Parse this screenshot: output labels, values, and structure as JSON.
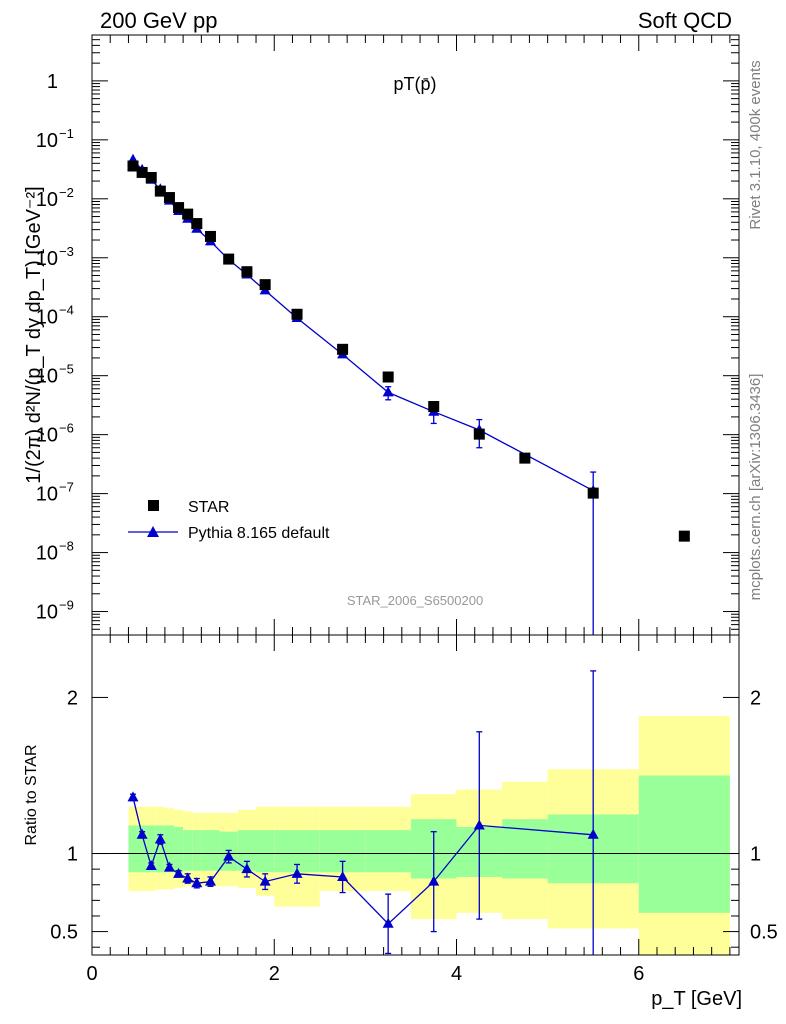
{
  "header": {
    "left": "200 GeV pp",
    "right": "Soft QCD"
  },
  "side_labels": {
    "rivet": "Rivet 3.1.10,  400k events",
    "mcplots": "mcplots.cern.ch [arXiv:1306.3436]"
  },
  "colors": {
    "data": "#000000",
    "mc": "#0000cc",
    "band_inner": "#99ff99",
    "band_outer": "#ffff99"
  },
  "chart_data": {
    "type": "scatter",
    "title": "pT(p̄)",
    "analysis_label": "STAR_2006_S6500200",
    "xlabel": "p_T [GeV]",
    "ylabel": "1/(2π) d²N/(p_T dy dp_T) [GeV⁻²]",
    "ratio_ylabel": "Ratio to STAR",
    "xlim": [
      0,
      7.1
    ],
    "ylim": [
      4e-10,
      6
    ],
    "ratio_ylim": [
      0.35,
      2.4
    ],
    "x_ticks": [
      0,
      2,
      4,
      6
    ],
    "y_ticks": [
      {
        "v": 1,
        "b": "1",
        "e": ""
      },
      {
        "v": 0.1,
        "b": "10",
        "e": "−1"
      },
      {
        "v": 0.01,
        "b": "10",
        "e": "−2"
      },
      {
        "v": 0.001,
        "b": "10",
        "e": "−3"
      },
      {
        "v": 0.0001,
        "b": "10",
        "e": "−4"
      },
      {
        "v": 1e-05,
        "b": "10",
        "e": "−5"
      },
      {
        "v": 1e-06,
        "b": "10",
        "e": "−6"
      },
      {
        "v": 1e-07,
        "b": "10",
        "e": "−7"
      },
      {
        "v": 1e-08,
        "b": "10",
        "e": "−8"
      },
      {
        "v": 1e-09,
        "b": "10",
        "e": "−9"
      }
    ],
    "ratio_ticks": [
      {
        "v": 0.5,
        "label": "0.5"
      },
      {
        "v": 1,
        "label": "1"
      },
      {
        "v": 2,
        "label": "2"
      }
    ],
    "legend": {
      "position": "bottom-left",
      "entries": [
        "STAR",
        "Pythia 8.165 default"
      ]
    },
    "series": [
      {
        "name": "STAR",
        "x": [
          0.45,
          0.55,
          0.65,
          0.75,
          0.85,
          0.95,
          1.05,
          1.15,
          1.3,
          1.5,
          1.7,
          1.9,
          2.25,
          2.75,
          3.25,
          3.75,
          4.25,
          4.75,
          5.5,
          6.5
        ],
        "y": [
          0.036,
          0.028,
          0.023,
          0.0135,
          0.0105,
          0.0071,
          0.0055,
          0.0038,
          0.0023,
          0.00095,
          0.00058,
          0.00035,
          0.00011,
          2.8e-05,
          9.5e-06,
          3e-06,
          1.02e-06,
          4e-07,
          1.02e-07,
          1.9e-08
        ]
      },
      {
        "name": "Pythia 8.165 default",
        "x": [
          0.45,
          0.55,
          0.65,
          0.75,
          0.85,
          0.95,
          1.05,
          1.15,
          1.3,
          1.5,
          1.7,
          1.9,
          2.25,
          2.75,
          3.25,
          3.75,
          4.25,
          5.5
        ],
        "y": [
          0.046,
          0.031,
          0.021,
          0.0145,
          0.0093,
          0.0062,
          0.0046,
          0.0031,
          0.0019,
          0.00093,
          0.00052,
          0.00028,
          9.5e-05,
          2.3e-05,
          5.2e-06,
          2.45e-06,
          1.2e-06,
          1.12e-07
        ],
        "y_err_low": [
          0,
          0,
          0,
          0,
          0,
          0,
          0,
          0,
          0,
          0,
          0,
          0,
          0,
          0,
          1.3e-06,
          9e-07,
          6e-07,
          1.12e-07
        ],
        "y_err_high": [
          0,
          0,
          0,
          0,
          0,
          0,
          0,
          0,
          0,
          0,
          0,
          0,
          0,
          0,
          1.3e-06,
          9e-07,
          6e-07,
          1.2e-07
        ]
      }
    ],
    "ratio": {
      "x": [
        0.45,
        0.55,
        0.65,
        0.75,
        0.85,
        0.95,
        1.05,
        1.15,
        1.3,
        1.5,
        1.7,
        1.9,
        2.25,
        2.75,
        3.25,
        3.75,
        4.25,
        5.5
      ],
      "values": [
        1.36,
        1.12,
        0.92,
        1.09,
        0.91,
        0.87,
        0.84,
        0.81,
        0.82,
        0.98,
        0.9,
        0.82,
        0.87,
        0.85,
        0.55,
        0.82,
        1.18,
        1.12
      ],
      "err": [
        0.02,
        0.02,
        0.02,
        0.03,
        0.02,
        0.02,
        0.03,
        0.03,
        0.03,
        0.04,
        0.05,
        0.05,
        0.06,
        0.1,
        0.19,
        0.32,
        0.6,
        1.05
      ]
    },
    "bands": [
      {
        "lo": 0.4,
        "hi": 0.5,
        "inner": [
          0.88,
          1.18
        ],
        "outer": [
          0.76,
          1.3
        ]
      },
      {
        "lo": 0.5,
        "hi": 0.6,
        "inner": [
          0.88,
          1.18
        ],
        "outer": [
          0.76,
          1.3
        ]
      },
      {
        "lo": 0.6,
        "hi": 0.7,
        "inner": [
          0.88,
          1.18
        ],
        "outer": [
          0.76,
          1.3
        ]
      },
      {
        "lo": 0.7,
        "hi": 0.8,
        "inner": [
          0.88,
          1.18
        ],
        "outer": [
          0.77,
          1.3
        ]
      },
      {
        "lo": 0.8,
        "hi": 0.9,
        "inner": [
          0.88,
          1.18
        ],
        "outer": [
          0.77,
          1.29
        ]
      },
      {
        "lo": 0.9,
        "hi": 1.0,
        "inner": [
          0.88,
          1.17
        ],
        "outer": [
          0.78,
          1.28
        ]
      },
      {
        "lo": 1.0,
        "hi": 1.1,
        "inner": [
          0.89,
          1.15
        ],
        "outer": [
          0.79,
          1.27
        ]
      },
      {
        "lo": 1.1,
        "hi": 1.2,
        "inner": [
          0.89,
          1.15
        ],
        "outer": [
          0.79,
          1.26
        ]
      },
      {
        "lo": 1.2,
        "hi": 1.4,
        "inner": [
          0.89,
          1.15
        ],
        "outer": [
          0.79,
          1.26
        ]
      },
      {
        "lo": 1.4,
        "hi": 1.6,
        "inner": [
          0.89,
          1.14
        ],
        "outer": [
          0.79,
          1.26
        ]
      },
      {
        "lo": 1.6,
        "hi": 1.8,
        "inner": [
          0.89,
          1.15
        ],
        "outer": [
          0.78,
          1.28
        ]
      },
      {
        "lo": 1.8,
        "hi": 2.0,
        "inner": [
          0.88,
          1.15
        ],
        "outer": [
          0.73,
          1.3
        ]
      },
      {
        "lo": 2.0,
        "hi": 2.5,
        "inner": [
          0.88,
          1.15
        ],
        "outer": [
          0.66,
          1.3
        ]
      },
      {
        "lo": 2.5,
        "hi": 3.0,
        "inner": [
          0.88,
          1.15
        ],
        "outer": [
          0.76,
          1.3
        ]
      },
      {
        "lo": 3.0,
        "hi": 3.5,
        "inner": [
          0.88,
          1.15
        ],
        "outer": [
          0.76,
          1.3
        ]
      },
      {
        "lo": 3.5,
        "hi": 4.0,
        "inner": [
          0.84,
          1.22
        ],
        "outer": [
          0.58,
          1.38
        ]
      },
      {
        "lo": 4.0,
        "hi": 4.5,
        "inner": [
          0.85,
          1.17
        ],
        "outer": [
          0.62,
          1.41
        ]
      },
      {
        "lo": 4.5,
        "hi": 5.0,
        "inner": [
          0.84,
          1.22
        ],
        "outer": [
          0.58,
          1.46
        ]
      },
      {
        "lo": 5.0,
        "hi": 6.0,
        "inner": [
          0.81,
          1.25
        ],
        "outer": [
          0.52,
          1.54
        ]
      },
      {
        "lo": 6.0,
        "hi": 7.0,
        "inner": [
          0.62,
          1.5
        ],
        "outer": [
          0.3,
          1.88
        ]
      }
    ]
  }
}
